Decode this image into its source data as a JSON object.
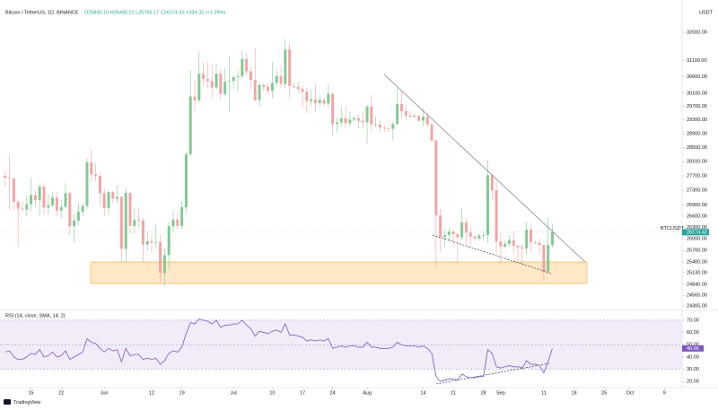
{
  "header": {
    "symbol": "Bitcoin / TetherUS, 1D, BINANCE",
    "ohlc": "O25840.10 H26405.22 L25766.17 C26174.42 +334.32 (+1.29%)"
  },
  "logo": "TradingView",
  "chart_data": [
    {
      "type": "candlestick",
      "y_unit": "USDT",
      "symbol_label": "BTCUSDT",
      "log_scale": true,
      "grid": false,
      "up_color": "#81c995",
      "down_color": "#f4a3a3",
      "xlim": [
        -1.2,
        157.1
      ],
      "ylim": [
        24217,
        32465
      ],
      "yticks": [
        {
          "value": 32000,
          "label": "32000.00"
        },
        {
          "value": 31100,
          "label": "31100.00"
        },
        {
          "value": 30600,
          "label": "30600.00"
        },
        {
          "value": 30100,
          "label": "30100.00"
        },
        {
          "value": 29700,
          "label": "29700.00"
        },
        {
          "value": 29300,
          "label": "29300.00"
        },
        {
          "value": 28900,
          "label": "28900.00"
        },
        {
          "value": 28500,
          "label": "28500.00"
        },
        {
          "value": 28100,
          "label": "28100.00"
        },
        {
          "value": 27700,
          "label": "27700.00"
        },
        {
          "value": 27300,
          "label": "27300.00"
        },
        {
          "value": 26900,
          "label": "26900.00"
        },
        {
          "value": 26600,
          "label": "26600.00"
        },
        {
          "value": 26300,
          "label": "26300.00"
        },
        {
          "value": 26000,
          "label": "26000.00"
        },
        {
          "value": 25700,
          "label": "25700.00"
        },
        {
          "value": 25400,
          "label": "25400.00"
        },
        {
          "value": 25130,
          "label": "25130.00"
        },
        {
          "value": 24840,
          "label": "24840.00"
        },
        {
          "value": 24565,
          "label": "24565.00"
        },
        {
          "value": 24305,
          "label": "24305.00"
        }
      ],
      "xticks": [
        {
          "value": 6,
          "label": "15"
        },
        {
          "value": 13,
          "label": "22"
        },
        {
          "value": 23,
          "label": "Jun"
        },
        {
          "value": 34,
          "label": "12"
        },
        {
          "value": 41,
          "label": "19"
        },
        {
          "value": 53,
          "label": "Jul"
        },
        {
          "value": 62,
          "label": "10"
        },
        {
          "value": 69,
          "label": "17"
        },
        {
          "value": 76,
          "label": "24"
        },
        {
          "value": 84,
          "label": "Aug"
        },
        {
          "value": 97,
          "label": "14"
        },
        {
          "value": 104,
          "label": "21"
        },
        {
          "value": 111,
          "label": "28"
        },
        {
          "value": 115,
          "label": "Sep"
        },
        {
          "value": 125,
          "label": "11"
        },
        {
          "value": 132,
          "label": "18"
        },
        {
          "value": 139,
          "label": "25"
        },
        {
          "value": 145,
          "label": "Oct"
        },
        {
          "value": 153,
          "label": "9"
        }
      ],
      "x": [
        0,
        1,
        2,
        3,
        4,
        5,
        6,
        7,
        8,
        9,
        10,
        11,
        12,
        13,
        14,
        15,
        16,
        17,
        18,
        19,
        20,
        21,
        22,
        23,
        24,
        25,
        26,
        27,
        28,
        29,
        30,
        31,
        32,
        33,
        34,
        35,
        36,
        37,
        38,
        39,
        40,
        41,
        42,
        43,
        44,
        45,
        46,
        47,
        48,
        49,
        50,
        51,
        52,
        53,
        54,
        55,
        56,
        57,
        58,
        59,
        60,
        61,
        62,
        63,
        64,
        65,
        66,
        67,
        68,
        69,
        70,
        71,
        72,
        73,
        74,
        75,
        76,
        77,
        78,
        79,
        80,
        81,
        82,
        83,
        84,
        85,
        86,
        87,
        88,
        89,
        90,
        91,
        92,
        93,
        94,
        95,
        96,
        97,
        98,
        99,
        100,
        101,
        102,
        103,
        104,
        105,
        106,
        107,
        108,
        109,
        110,
        111,
        112,
        113,
        114,
        115,
        116,
        117,
        118,
        119,
        120,
        121,
        122,
        123,
        124,
        125,
        126,
        127
      ],
      "open": [
        27700,
        27650,
        27630,
        26990,
        26800,
        26780,
        26920,
        27170,
        27030,
        27400,
        26830,
        26890,
        27100,
        26750,
        26850,
        27220,
        26330,
        26480,
        26720,
        26870,
        28080,
        27740,
        27700,
        27220,
        26820,
        27250,
        27070,
        27120,
        25740,
        27230,
        26340,
        26500,
        26480,
        25850,
        25940,
        25900,
        25920,
        25120,
        25580,
        26330,
        26510,
        26340,
        26840,
        28310,
        30000,
        29890,
        30690,
        30530,
        30470,
        30270,
        30690,
        30080,
        30450,
        30470,
        30590,
        30620,
        31150,
        30770,
        30500,
        29890,
        30350,
        30290,
        30170,
        30410,
        30620,
        30380,
        31450,
        30320,
        30290,
        30230,
        30140,
        29860,
        29910,
        29800,
        29900,
        29790,
        30080,
        29180,
        29230,
        29350,
        29210,
        29310,
        29350,
        29280,
        29230,
        29700,
        29170,
        29170,
        29080,
        29050,
        29040,
        29180,
        29770,
        29560,
        29430,
        29400,
        29420,
        29280,
        29400,
        29170,
        28700,
        26620,
        26050,
        26100,
        26190,
        26120,
        26040,
        26430,
        26160,
        26060,
        26010,
        26090,
        26100,
        27720,
        27300,
        25930,
        25800,
        25870,
        25970,
        25820,
        25780,
        25750,
        26240,
        25910,
        25900,
        25840,
        25160,
        25840.1
      ],
      "high": [
        27850,
        28300,
        27650,
        27050,
        27000,
        27150,
        27650,
        27300,
        27500,
        27500,
        27200,
        27250,
        27250,
        27050,
        27500,
        27250,
        26650,
        26950,
        26950,
        28200,
        28450,
        28050,
        27800,
        27350,
        27300,
        27300,
        27450,
        27150,
        27350,
        27250,
        26800,
        26800,
        26550,
        26200,
        26100,
        26400,
        26100,
        25750,
        26450,
        26750,
        26700,
        27000,
        28400,
        30800,
        30500,
        31400,
        31050,
        31050,
        31000,
        31000,
        30850,
        30850,
        31250,
        30650,
        30800,
        31400,
        31350,
        30900,
        31500,
        30450,
        30400,
        30400,
        31050,
        30800,
        30950,
        31800,
        31650,
        30400,
        30450,
        30350,
        30250,
        30200,
        30400,
        30050,
        29950,
        30350,
        30100,
        29350,
        29700,
        29700,
        29550,
        29400,
        29450,
        29550,
        29750,
        30050,
        29400,
        29300,
        29150,
        29150,
        29250,
        30250,
        30150,
        29750,
        29550,
        29500,
        29450,
        29650,
        29500,
        29250,
        28750,
        26800,
        26250,
        26300,
        26250,
        26150,
        26800,
        26550,
        26300,
        26100,
        26150,
        26200,
        28150,
        27750,
        27550,
        26150,
        25950,
        26100,
        26200,
        25850,
        25850,
        26450,
        26400,
        25950,
        26000,
        25850,
        26550,
        26405.22
      ],
      "low": [
        27400,
        26800,
        26750,
        25800,
        26700,
        26600,
        26750,
        26850,
        26600,
        26650,
        26650,
        26850,
        26600,
        26550,
        26800,
        26100,
        25900,
        26350,
        26600,
        26800,
        27550,
        27550,
        26850,
        26600,
        26650,
        26950,
        26950,
        25400,
        25400,
        26150,
        26150,
        26300,
        25400,
        25700,
        25650,
        25750,
        24900,
        24800,
        25200,
        26200,
        26250,
        26250,
        26650,
        28250,
        29550,
        29800,
        30300,
        30250,
        29950,
        30200,
        29900,
        30000,
        29550,
        30300,
        30150,
        30550,
        30650,
        30200,
        29850,
        29700,
        30150,
        30050,
        29950,
        30300,
        30250,
        30250,
        29950,
        30250,
        30100,
        29650,
        29500,
        29750,
        29550,
        29700,
        29700,
        29700,
        28850,
        28950,
        29100,
        29050,
        29100,
        29250,
        29050,
        29050,
        28600,
        28950,
        29100,
        28950,
        28950,
        28950,
        28700,
        29150,
        29350,
        29300,
        29350,
        29350,
        29250,
        29100,
        29100,
        28650,
        25250,
        25650,
        25800,
        25950,
        25800,
        25350,
        25950,
        25850,
        25800,
        25950,
        25950,
        25950,
        25900,
        27050,
        25650,
        25350,
        25750,
        25800,
        25600,
        25400,
        25350,
        25600,
        25650,
        25850,
        25600,
        24900,
        25150,
        25766.17
      ],
      "close": [
        27650,
        27630,
        26990,
        26800,
        26780,
        26920,
        27170,
        27030,
        27400,
        26830,
        26890,
        27100,
        26750,
        26850,
        27220,
        26330,
        26480,
        26720,
        26870,
        28080,
        27740,
        27700,
        27220,
        26820,
        27250,
        27070,
        27120,
        25740,
        27230,
        26340,
        26500,
        26480,
        25850,
        25940,
        25900,
        25920,
        25120,
        25580,
        26330,
        26510,
        26340,
        26840,
        28310,
        30000,
        29890,
        30690,
        30530,
        30470,
        30270,
        30690,
        30080,
        30450,
        30470,
        30590,
        30620,
        31150,
        30770,
        30500,
        29890,
        30350,
        30290,
        30170,
        30410,
        30620,
        30380,
        31450,
        30320,
        30290,
        30230,
        30140,
        29860,
        29910,
        29800,
        29900,
        29790,
        30080,
        29180,
        29230,
        29350,
        29210,
        29310,
        29350,
        29280,
        29230,
        29700,
        29170,
        29170,
        29080,
        29050,
        29040,
        29180,
        29770,
        29560,
        29430,
        29400,
        29420,
        29280,
        29400,
        29170,
        28700,
        26620,
        26050,
        26100,
        26190,
        26120,
        26040,
        26430,
        26160,
        26060,
        26010,
        26090,
        26100,
        27720,
        27300,
        25930,
        25800,
        25870,
        25970,
        25820,
        25780,
        25750,
        26240,
        25910,
        25900,
        25840,
        25160,
        25840,
        26174.42
      ]
    },
    {
      "type": "line",
      "title": "RSI (14, close, SMA, 14, 2)",
      "color": "#7e57c2",
      "band_color": "#ede7f6",
      "bands": {
        "upper": 70,
        "middle": 50,
        "lower": 30
      },
      "ylim": [
        15,
        78
      ],
      "yticks": [
        {
          "value": 70,
          "label": "70.00"
        },
        {
          "value": 60,
          "label": "60.00"
        },
        {
          "value": 50,
          "label": "50.00"
        },
        {
          "value": 40,
          "label": "40.00"
        },
        {
          "value": 30,
          "label": "30.00"
        },
        {
          "value": 20,
          "label": "20.00"
        }
      ],
      "values": [
        44,
        45,
        40,
        38,
        38,
        40,
        43,
        42,
        46,
        40,
        41,
        44,
        40,
        41,
        45,
        38,
        40,
        42,
        44,
        55,
        52,
        51,
        47,
        44,
        47,
        45,
        46,
        36,
        47,
        41,
        42,
        42,
        38,
        39,
        38,
        39,
        34,
        37,
        43,
        45,
        44,
        48,
        59,
        68,
        67,
        71,
        70,
        69,
        67,
        70,
        64,
        66,
        66,
        67,
        67,
        70,
        66,
        63,
        57,
        61,
        60,
        59,
        61,
        62,
        60,
        67,
        58,
        58,
        57,
        56,
        53,
        54,
        53,
        54,
        53,
        55,
        47,
        48,
        49,
        48,
        49,
        49,
        48,
        48,
        52,
        48,
        48,
        47,
        47,
        47,
        48,
        52,
        50,
        49,
        49,
        49,
        48,
        49,
        47,
        43,
        24,
        20,
        21,
        22,
        22,
        21,
        26,
        24,
        23,
        23,
        24,
        24,
        46,
        43,
        32,
        31,
        32,
        33,
        32,
        32,
        31,
        37,
        34,
        34,
        33,
        27,
        36,
        46.96
      ]
    }
  ]
}
